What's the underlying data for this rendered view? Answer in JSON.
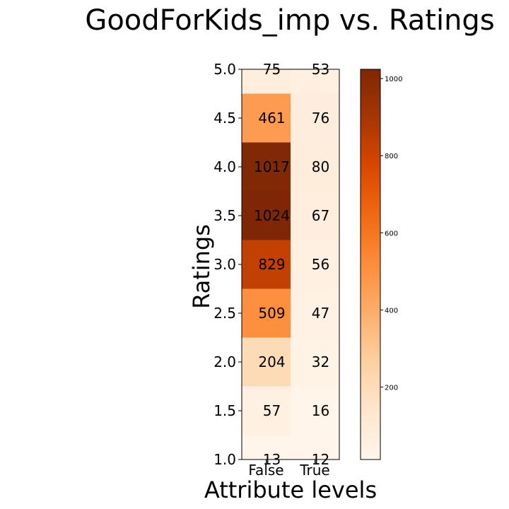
{
  "chart_data": {
    "type": "heatmap",
    "title": "GoodForKids_imp vs. Ratings",
    "xlabel": "Attribute levels",
    "ylabel": "Ratings",
    "x_categories": [
      "False",
      "True"
    ],
    "y_categories": [
      1.0,
      1.5,
      2.0,
      2.5,
      3.0,
      3.5,
      4.0,
      4.5,
      5.0
    ],
    "y_tick_labels": [
      "1.0",
      "1.5",
      "2.0",
      "2.5",
      "3.0",
      "3.5",
      "4.0",
      "4.5",
      "5.0"
    ],
    "ylim": [
      1.0,
      5.0
    ],
    "values": [
      [
        13,
        12
      ],
      [
        57,
        16
      ],
      [
        204,
        32
      ],
      [
        509,
        47
      ],
      [
        829,
        56
      ],
      [
        1024,
        67
      ],
      [
        1017,
        80
      ],
      [
        461,
        76
      ],
      [
        75,
        53
      ]
    ],
    "colorbar": {
      "colormap": "Oranges",
      "min": 12,
      "max": 1024,
      "ticks": [
        200,
        400,
        600,
        800,
        1000
      ],
      "tick_labels": [
        "200",
        "400",
        "600",
        "800",
        "1000"
      ]
    },
    "grid": false,
    "legend": "colorbar-right"
  }
}
